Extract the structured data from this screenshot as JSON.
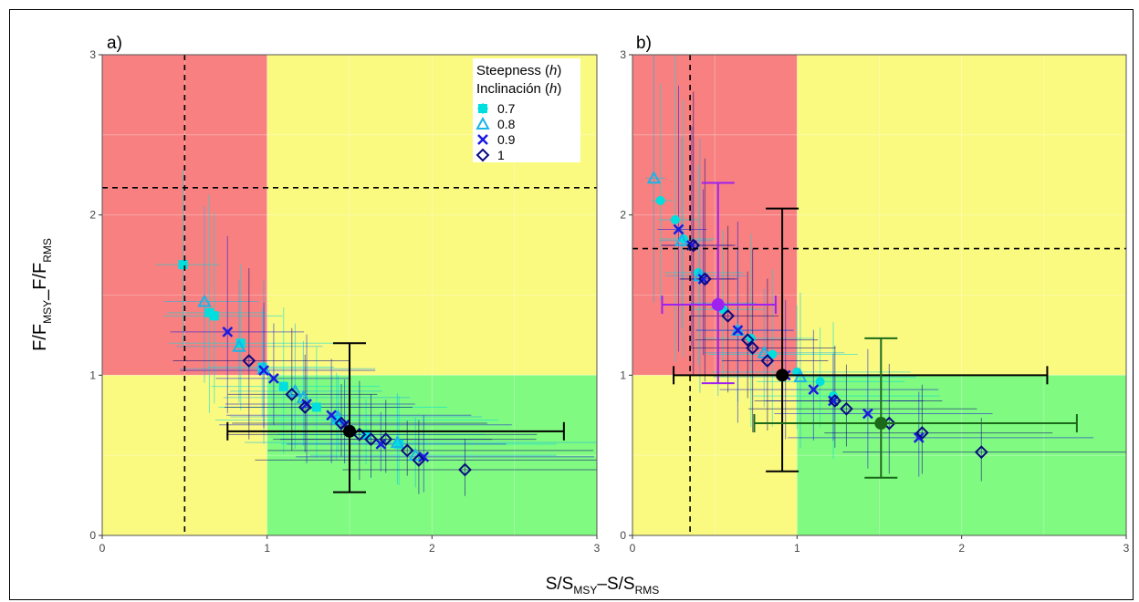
{
  "figure": {
    "y_axis_label": {
      "main": "F/F",
      "sub1": "MSY",
      "sep": "_F/F",
      "sub2": "RMS"
    },
    "x_axis_label": {
      "main": "S/S",
      "sub1": "MSY",
      "sep": "–S/S",
      "sub2": "RMS"
    }
  },
  "legend": {
    "title_line1": "Steepness (",
    "title_line1_italic": "h",
    "title_line1_end": ")",
    "title_line2": "Inclinación (",
    "title_line2_italic": "h",
    "title_line2_end": ")"
  },
  "colors": {
    "red_zone": "#f88080",
    "yellow_zone": "#fafa80",
    "green_zone": "#80fa80",
    "h07": "#00dede",
    "h08": "#1ab4e8",
    "h09": "#1a1ae0",
    "h1": "#0a0a80",
    "black": "#000000",
    "purple": "#a020f0",
    "green": "#1a6a1a"
  },
  "chart_data": [
    {
      "panel_label": "a)",
      "type": "scatter",
      "xlim": [
        0,
        3
      ],
      "ylim": [
        0,
        3
      ],
      "x_ticks": [
        "0",
        "1",
        "2",
        "3"
      ],
      "y_ticks": [
        "0",
        "1",
        "2",
        "3"
      ],
      "reference_lines": {
        "v_dashed": 0.5,
        "h_dashed": 2.17
      },
      "zones": [
        {
          "name": "red",
          "x": [
            0,
            1
          ],
          "y": [
            1,
            3
          ]
        },
        {
          "name": "yellow",
          "x": [
            1,
            3
          ],
          "y": [
            1,
            3
          ]
        },
        {
          "name": "yellow",
          "x": [
            0,
            1
          ],
          "y": [
            0,
            1
          ]
        },
        {
          "name": "green",
          "x": [
            1,
            3
          ],
          "y": [
            0,
            1
          ]
        }
      ],
      "show_legend": true,
      "series": [
        {
          "name": "0.7",
          "marker": "square",
          "color_key": "h07",
          "points": [
            [
              0.49,
              1.69
            ],
            [
              0.65,
              1.39
            ],
            [
              0.68,
              1.37
            ],
            [
              0.84,
              1.2
            ],
            [
              0.97,
              1.05
            ],
            [
              1.1,
              0.93
            ],
            [
              1.3,
              0.8
            ],
            [
              1.42,
              0.72
            ],
            [
              1.6,
              0.63
            ],
            [
              1.8,
              0.57
            ]
          ]
        },
        {
          "name": "0.8",
          "marker": "triangle",
          "color_key": "h08",
          "points": [
            [
              0.62,
              1.46
            ],
            [
              0.83,
              1.18
            ],
            [
              0.98,
              1.04
            ],
            [
              1.17,
              0.9
            ],
            [
              1.22,
              0.86
            ],
            [
              1.43,
              0.74
            ],
            [
              1.79,
              0.58
            ],
            [
              1.9,
              0.5
            ]
          ]
        },
        {
          "name": "0.9",
          "marker": "x",
          "color_key": "h09",
          "points": [
            [
              0.76,
              1.27
            ],
            [
              0.98,
              1.03
            ],
            [
              1.04,
              0.98
            ],
            [
              1.24,
              0.82
            ],
            [
              1.39,
              0.75
            ],
            [
              1.47,
              0.69
            ],
            [
              1.69,
              0.57
            ],
            [
              1.95,
              0.49
            ]
          ]
        },
        {
          "name": "1",
          "marker": "diamond",
          "color_key": "h1",
          "points": [
            [
              0.89,
              1.09
            ],
            [
              1.15,
              0.88
            ],
            [
              1.23,
              0.8
            ],
            [
              1.45,
              0.7
            ],
            [
              1.56,
              0.63
            ],
            [
              1.63,
              0.6
            ],
            [
              1.72,
              0.6
            ],
            [
              1.85,
              0.53
            ],
            [
              1.92,
              0.47
            ],
            [
              2.2,
              0.41
            ]
          ]
        }
      ],
      "reference_points": [
        {
          "x": 1.5,
          "y": 0.65,
          "x_low": 0.76,
          "x_high": 2.8,
          "y_low": 0.27,
          "y_high": 1.2,
          "color_key": "black"
        }
      ]
    },
    {
      "panel_label": "b)",
      "type": "scatter",
      "xlim": [
        0,
        3
      ],
      "ylim": [
        0,
        3
      ],
      "x_ticks": [
        "0",
        "1",
        "2",
        "3"
      ],
      "y_ticks": [
        "0",
        "1",
        "2",
        "3"
      ],
      "reference_lines": {
        "v_dashed": 0.35,
        "h_dashed": 1.79
      },
      "zones": [
        {
          "name": "red",
          "x": [
            0,
            1
          ],
          "y": [
            1,
            3
          ]
        },
        {
          "name": "yellow",
          "x": [
            1,
            3
          ],
          "y": [
            1,
            3
          ]
        },
        {
          "name": "yellow",
          "x": [
            0,
            1
          ],
          "y": [
            0,
            1
          ]
        },
        {
          "name": "green",
          "x": [
            1,
            3
          ],
          "y": [
            0,
            1
          ]
        }
      ],
      "show_legend": false,
      "series": [
        {
          "name": "0.7",
          "marker": "circle",
          "color_key": "h07",
          "points": [
            [
              0.17,
              2.09
            ],
            [
              0.26,
              1.97
            ],
            [
              0.31,
              1.85
            ],
            [
              0.4,
              1.64
            ],
            [
              0.55,
              1.41
            ],
            [
              0.72,
              1.23
            ],
            [
              0.85,
              1.13
            ],
            [
              1.0,
              1.02
            ],
            [
              1.14,
              0.96
            ],
            [
              1.22,
              0.87
            ]
          ]
        },
        {
          "name": "0.8",
          "marker": "triangle",
          "color_key": "h08",
          "points": [
            [
              0.13,
              2.23
            ],
            [
              0.3,
              1.84
            ],
            [
              0.41,
              1.62
            ],
            [
              0.52,
              1.45
            ],
            [
              0.64,
              1.28
            ],
            [
              0.8,
              1.14
            ],
            [
              1.02,
              0.99
            ]
          ]
        },
        {
          "name": "0.9",
          "marker": "x",
          "color_key": "h09",
          "points": [
            [
              0.28,
              1.91
            ],
            [
              0.36,
              1.81
            ],
            [
              0.43,
              1.6
            ],
            [
              0.64,
              1.28
            ],
            [
              0.93,
              1.0
            ],
            [
              1.1,
              0.91
            ],
            [
              1.22,
              0.84
            ],
            [
              1.43,
              0.76
            ],
            [
              1.74,
              0.61
            ]
          ]
        },
        {
          "name": "1",
          "marker": "diamond",
          "color_key": "h1",
          "points": [
            [
              0.37,
              1.81
            ],
            [
              0.44,
              1.6
            ],
            [
              0.58,
              1.37
            ],
            [
              0.7,
              1.22
            ],
            [
              0.73,
              1.17
            ],
            [
              0.82,
              1.09
            ],
            [
              1.23,
              0.84
            ],
            [
              1.3,
              0.79
            ],
            [
              1.56,
              0.7
            ],
            [
              1.76,
              0.64
            ],
            [
              2.12,
              0.52
            ]
          ]
        }
      ],
      "reference_points": [
        {
          "x": 0.52,
          "y": 1.44,
          "x_low": 0.18,
          "x_high": 0.87,
          "y_low": 0.95,
          "y_high": 2.2,
          "color_key": "purple"
        },
        {
          "x": 0.91,
          "y": 1.0,
          "x_low": 0.25,
          "x_high": 2.52,
          "y_low": 0.4,
          "y_high": 2.04,
          "color_key": "black"
        },
        {
          "x": 1.51,
          "y": 0.7,
          "x_low": 0.74,
          "x_high": 2.7,
          "y_low": 0.36,
          "y_high": 1.23,
          "color_key": "green"
        }
      ]
    }
  ]
}
